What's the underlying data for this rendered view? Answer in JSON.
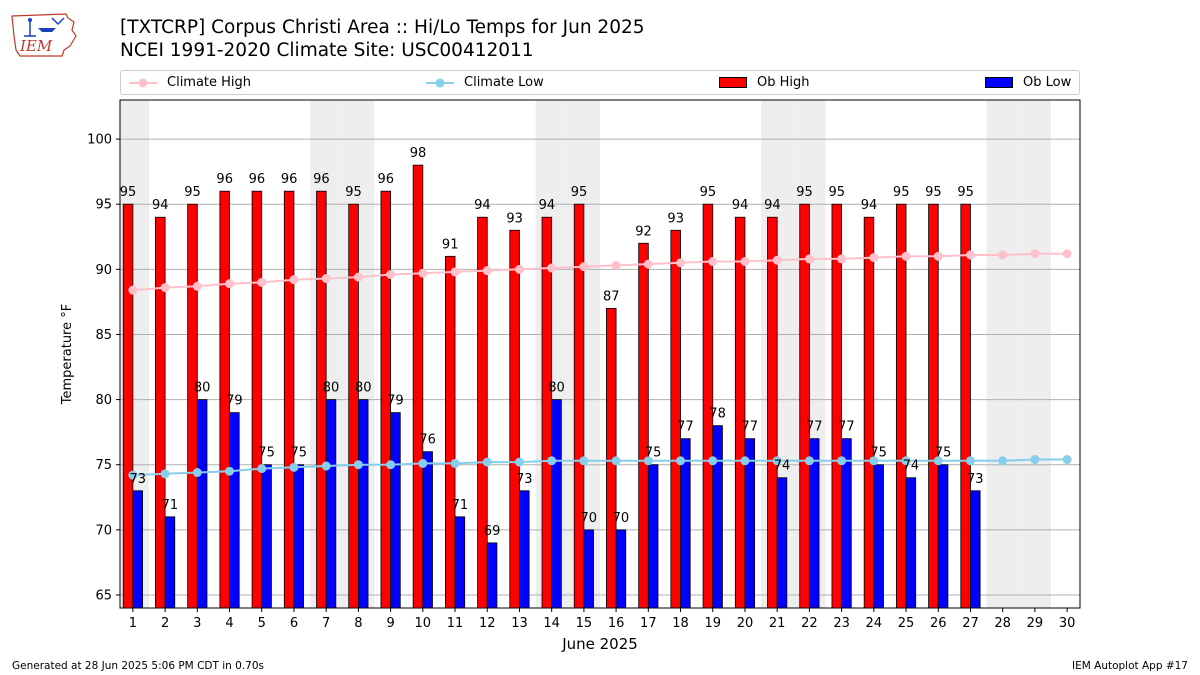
{
  "header": {
    "title_line1": "[TXTCRP] Corpus Christi Area :: Hi/Lo Temps for Jun 2025",
    "title_line2": "NCEI 1991-2020 Climate Site: USC00412011",
    "logo_text": "IEM"
  },
  "legend": {
    "climate_high": "Climate High",
    "climate_low": "Climate Low",
    "ob_high": "Ob High",
    "ob_low": "Ob Low"
  },
  "colors": {
    "ob_high": "#ff0000",
    "ob_low": "#0000ff",
    "climate_high": "#ffc0cb",
    "climate_low": "#87ceeb",
    "weekend_shade": "#eeeeee",
    "grid": "#b0b0b0"
  },
  "footer": {
    "left": "Generated at 28 Jun 2025 5:06 PM CDT in 0.70s",
    "right": "IEM Autoplot App #17"
  },
  "chart_data": {
    "type": "bar",
    "title": "[TXTCRP] Corpus Christi Area :: Hi/Lo Temps for Jun 2025",
    "subtitle": "NCEI 1991-2020 Climate Site: USC00412011",
    "xlabel": "June 2025",
    "ylabel": "Temperature °F",
    "ylim": [
      64,
      103
    ],
    "yticks": [
      65,
      70,
      75,
      80,
      85,
      90,
      95,
      100
    ],
    "grid": true,
    "legend_position": "top",
    "x": [
      1,
      2,
      3,
      4,
      5,
      6,
      7,
      8,
      9,
      10,
      11,
      12,
      13,
      14,
      15,
      16,
      17,
      18,
      19,
      20,
      21,
      22,
      23,
      24,
      25,
      26,
      27,
      28,
      29,
      30
    ],
    "shaded_days": [
      1,
      7,
      8,
      14,
      15,
      21,
      22,
      28,
      29
    ],
    "series": [
      {
        "name": "Ob High",
        "type": "bar",
        "values": [
          95,
          94,
          95,
          96,
          96,
          96,
          96,
          95,
          96,
          98,
          91,
          94,
          93,
          94,
          95,
          87,
          92,
          93,
          95,
          94,
          94,
          95,
          95,
          94,
          95,
          95,
          95,
          null,
          null,
          null
        ]
      },
      {
        "name": "Ob Low",
        "type": "bar",
        "values": [
          73,
          71,
          80,
          79,
          75,
          75,
          80,
          80,
          79,
          76,
          71,
          69,
          73,
          80,
          70,
          70,
          75,
          77,
          78,
          77,
          74,
          77,
          77,
          75,
          74,
          75,
          73,
          null,
          null,
          null
        ]
      },
      {
        "name": "Climate High",
        "type": "line",
        "values": [
          88.4,
          88.6,
          88.7,
          88.9,
          89.0,
          89.2,
          89.3,
          89.4,
          89.6,
          89.7,
          89.8,
          89.9,
          90.0,
          90.1,
          90.2,
          90.3,
          90.4,
          90.5,
          90.6,
          90.6,
          90.7,
          90.8,
          90.8,
          90.9,
          91.0,
          91.0,
          91.1,
          91.1,
          91.2,
          91.2
        ]
      },
      {
        "name": "Climate Low",
        "type": "line",
        "values": [
          74.2,
          74.3,
          74.4,
          74.5,
          74.7,
          74.8,
          74.9,
          75.0,
          75.0,
          75.1,
          75.1,
          75.2,
          75.2,
          75.3,
          75.3,
          75.3,
          75.3,
          75.3,
          75.3,
          75.3,
          75.3,
          75.3,
          75.3,
          75.3,
          75.3,
          75.3,
          75.3,
          75.3,
          75.4,
          75.4
        ]
      }
    ]
  }
}
